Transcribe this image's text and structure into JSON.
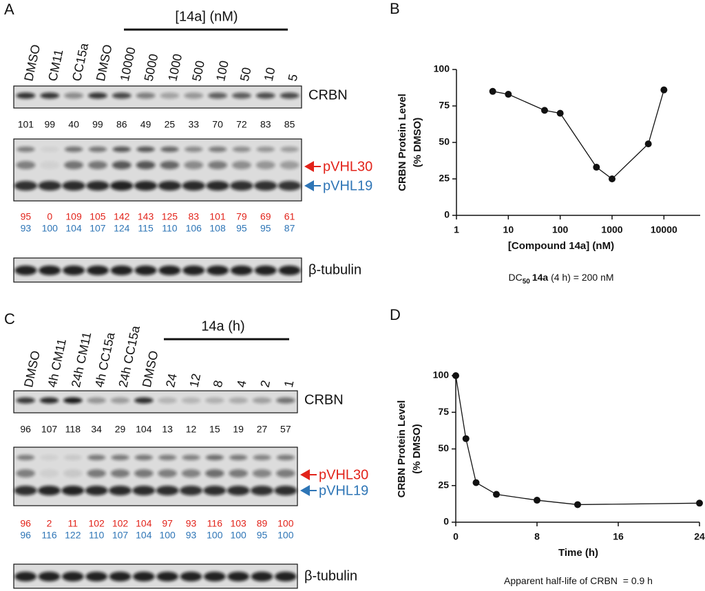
{
  "panel_a": {
    "panel_label": "A",
    "treatment_label": "[14a] (nM)",
    "lanes": [
      "DMSO",
      "CM11",
      "CC15a",
      "DMSO",
      "10000",
      "5000",
      "1000",
      "500",
      "100",
      "50",
      "10",
      "5"
    ],
    "crbn": {
      "label": "CRBN",
      "values": [
        101,
        99,
        40,
        99,
        86,
        49,
        25,
        33,
        70,
        72,
        83,
        85
      ]
    },
    "pvhl30": {
      "label": "pVHL30",
      "color": "#e2231a",
      "values": [
        95,
        0,
        109,
        105,
        142,
        143,
        125,
        83,
        101,
        79,
        69,
        61
      ]
    },
    "pvhl19": {
      "label": "pVHL19",
      "color": "#2e75b6",
      "values": [
        93,
        100,
        104,
        107,
        124,
        115,
        110,
        106,
        108,
        95,
        95,
        87
      ]
    },
    "tubulin_label": "β-tubulin"
  },
  "panel_c": {
    "panel_label": "C",
    "treatment_label": "14a (h)",
    "lanes": [
      "DMSO",
      "4h CM11",
      "24h CM11",
      "4h CC15a",
      "24h CC15a",
      "DMSO",
      "24",
      "12",
      "8",
      "4",
      "2",
      "1"
    ],
    "crbn": {
      "label": "CRBN",
      "values": [
        96,
        107,
        118,
        34,
        29,
        104,
        13,
        12,
        15,
        19,
        27,
        57
      ]
    },
    "pvhl30": {
      "label": "pVHL30",
      "color": "#e2231a",
      "values": [
        96,
        2,
        11,
        102,
        102,
        104,
        97,
        93,
        116,
        103,
        89,
        100
      ]
    },
    "pvhl19": {
      "label": "pVHL19",
      "color": "#2e75b6",
      "values": [
        96,
        116,
        122,
        110,
        107,
        104,
        100,
        93,
        100,
        100,
        95,
        100
      ]
    },
    "tubulin_label": "β-tubulin"
  },
  "chart_data": [
    {
      "type": "line",
      "panel_label": "B",
      "xscale": "log",
      "x": [
        5,
        10,
        50,
        100,
        500,
        1000,
        5000,
        10000
      ],
      "values": [
        85,
        83,
        72,
        70,
        33,
        25,
        49,
        86
      ],
      "color": "#111111",
      "xlim": [
        1,
        50000
      ],
      "xticks": [
        1,
        10,
        100,
        1000,
        10000
      ],
      "ylim": [
        0,
        100
      ],
      "yticks": [
        0,
        25,
        50,
        75,
        100
      ],
      "xlabel": "[Compound 14a] (nM)",
      "ylabel": [
        "CRBN Protein Level",
        "(% DMSO)"
      ],
      "caption": [
        "DC",
        "50",
        "14a",
        " (4 h) = 200 nM"
      ]
    },
    {
      "type": "line",
      "panel_label": "D",
      "xscale": "linear",
      "x": [
        0,
        1,
        2,
        4,
        8,
        12,
        24
      ],
      "values": [
        100,
        57,
        27,
        19,
        15,
        12,
        13
      ],
      "color": "#111111",
      "xlim": [
        0,
        24
      ],
      "xticks": [
        0,
        8,
        16,
        24
      ],
      "ylim": [
        0,
        100
      ],
      "yticks": [
        0,
        25,
        50,
        75,
        100
      ],
      "xlabel": "Time (h)",
      "ylabel": [
        "CRBN Protein Level",
        "(% DMSO)"
      ],
      "caption": [
        "Apparent half-life of CRBN  = 0.9 h"
      ]
    }
  ]
}
